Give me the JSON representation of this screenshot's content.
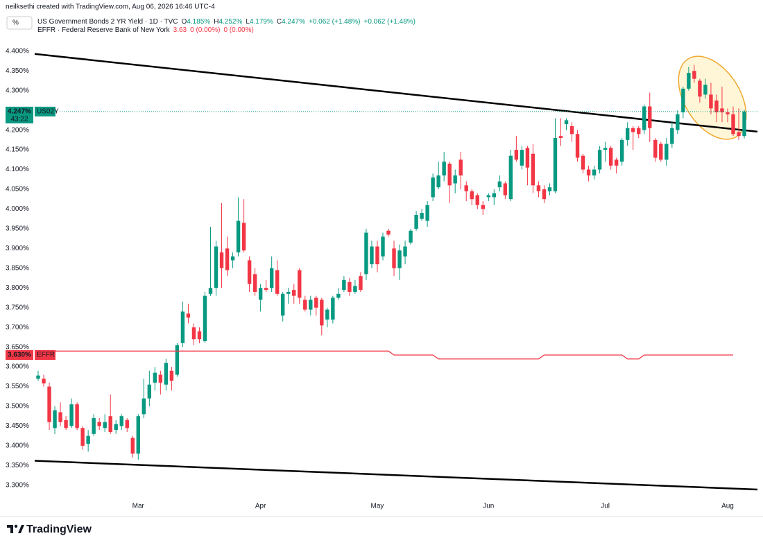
{
  "header": {
    "credit": "neilksethi created with TradingView.com, Aug 06, 2026 16:46 UTC-4",
    "icon": "%",
    "lines": [
      {
        "title": "US Government Bonds 2 YR Yield · 1D · TVC",
        "color": "#089981",
        "fields": [
          {
            "key": "O",
            "value": "4.185%"
          },
          {
            "key": "H",
            "value": "4.252%"
          },
          {
            "key": "L",
            "value": "4.179%"
          },
          {
            "key": "C",
            "value": "4.247%"
          },
          {
            "value": "+0.062 (+1.48%)"
          },
          {
            "value": "+0.062 (+1.48%)"
          }
        ]
      },
      {
        "title": "EFFR · Federal Reserve Bank of New York",
        "color": "#f23645",
        "fields": [
          {
            "value": "3.63"
          },
          {
            "value": "0 (0.00%)"
          },
          {
            "value": "0 (0.00%)"
          }
        ]
      }
    ]
  },
  "footer": {
    "brand": "TradingView"
  },
  "chart_data": {
    "type": "candlestick",
    "categories": [
      null,
      null,
      null,
      null,
      null,
      null,
      null,
      null,
      null,
      null,
      null,
      null,
      null,
      null,
      null,
      null,
      null,
      null,
      "Mar",
      null,
      null,
      null,
      null,
      null,
      null,
      null,
      null,
      null,
      null,
      null,
      null,
      null,
      null,
      null,
      null,
      null,
      null,
      null,
      null,
      null,
      "Apr",
      null,
      null,
      null,
      null,
      null,
      null,
      null,
      null,
      null,
      null,
      null,
      null,
      null,
      null,
      null,
      null,
      null,
      null,
      null,
      null,
      "May",
      null,
      null,
      null,
      null,
      null,
      null,
      null,
      null,
      null,
      null,
      null,
      null,
      null,
      null,
      null,
      null,
      null,
      null,
      null,
      "Jun",
      null,
      null,
      null,
      null,
      null,
      null,
      null,
      null,
      null,
      null,
      null,
      null,
      null,
      null,
      null,
      null,
      null,
      null,
      null,
      null,
      "Jul",
      null,
      null,
      null,
      null,
      null,
      null,
      null,
      null,
      null,
      null,
      null,
      null,
      null,
      null,
      null,
      null,
      null,
      null,
      null,
      null,
      null,
      "Aug",
      null,
      null,
      null
    ],
    "series": [
      {
        "name": "US02Y",
        "up_color": "#089981",
        "down_color": "#f23645",
        "open": [
          3.57,
          3.57,
          3.55,
          3.445,
          3.485,
          3.465,
          3.45,
          3.505,
          3.445,
          3.405,
          3.43,
          3.46,
          3.445,
          3.475,
          3.44,
          3.45,
          3.465,
          3.42,
          3.38,
          3.48,
          3.52,
          3.56,
          3.58,
          3.555,
          3.59,
          3.58,
          3.66,
          3.735,
          3.7,
          3.69,
          3.665,
          3.785,
          3.8,
          3.89,
          3.9,
          3.87,
          3.89,
          3.965,
          3.87,
          3.835,
          3.77,
          3.8,
          3.8,
          3.845,
          3.73,
          3.785,
          3.795,
          3.845,
          3.77,
          3.745,
          3.775,
          3.77,
          3.72,
          3.72,
          3.775,
          3.795,
          3.815,
          3.79,
          3.83,
          3.835,
          3.86,
          3.905,
          3.88,
          3.945,
          3.9,
          3.85,
          3.88,
          3.915,
          3.95,
          3.975,
          3.97,
          4.03,
          4.055,
          4.085,
          4.115,
          4.065,
          4.125,
          4.06,
          4.045,
          4.035,
          4.01,
          4.03,
          4.03,
          4.055,
          4.065,
          4.025,
          4.15,
          4.11,
          4.155,
          4.14,
          4.06,
          4.05,
          4.045,
          4.045,
          4.185,
          4.215,
          4.21,
          4.19,
          4.135,
          4.1,
          4.085,
          4.1,
          4.15,
          4.155,
          4.125,
          4.12,
          4.175,
          4.205,
          4.205,
          4.2,
          4.26,
          4.175,
          4.165,
          4.125,
          4.165,
          4.2,
          4.245,
          4.305,
          4.35,
          4.325,
          4.29,
          4.29,
          4.275,
          4.255,
          4.245,
          4.24,
          4.195,
          4.185
        ],
        "high": [
          3.59,
          3.58,
          3.56,
          3.5,
          3.51,
          3.475,
          3.52,
          3.51,
          3.45,
          3.44,
          3.48,
          3.47,
          3.48,
          3.53,
          3.465,
          3.48,
          3.47,
          3.425,
          3.48,
          3.57,
          3.59,
          3.6,
          3.59,
          3.62,
          3.6,
          3.66,
          3.765,
          3.76,
          3.71,
          3.7,
          3.79,
          3.955,
          3.92,
          4.015,
          3.93,
          3.89,
          4.03,
          4.025,
          3.88,
          3.85,
          3.81,
          3.82,
          3.88,
          3.87,
          3.79,
          3.8,
          3.81,
          3.85,
          3.78,
          3.78,
          3.78,
          3.775,
          3.75,
          3.78,
          3.8,
          3.83,
          3.825,
          3.82,
          3.84,
          3.95,
          3.92,
          3.92,
          3.94,
          3.95,
          3.92,
          3.91,
          3.92,
          3.95,
          3.995,
          4.0,
          4.02,
          4.09,
          4.12,
          4.145,
          4.12,
          4.1,
          4.145,
          4.07,
          4.05,
          4.04,
          4.02,
          4.04,
          4.05,
          4.085,
          4.07,
          4.15,
          4.185,
          4.16,
          4.16,
          4.165,
          4.07,
          4.06,
          4.065,
          4.23,
          4.23,
          4.23,
          4.22,
          4.2,
          4.14,
          4.11,
          4.11,
          4.16,
          4.17,
          4.16,
          4.13,
          4.18,
          4.22,
          4.21,
          4.21,
          4.265,
          4.295,
          4.18,
          4.17,
          4.18,
          4.22,
          4.25,
          4.31,
          4.36,
          4.365,
          4.33,
          4.33,
          4.32,
          4.29,
          4.31,
          4.255,
          4.26,
          4.255,
          4.252
        ],
        "low": [
          3.565,
          3.55,
          3.44,
          3.43,
          3.45,
          3.44,
          3.445,
          3.44,
          3.39,
          3.385,
          3.425,
          3.44,
          3.435,
          3.43,
          3.43,
          3.44,
          3.435,
          3.37,
          3.365,
          3.47,
          3.5,
          3.54,
          3.53,
          3.54,
          3.54,
          3.575,
          3.65,
          3.71,
          3.655,
          3.66,
          3.66,
          3.78,
          3.78,
          3.8,
          3.83,
          3.85,
          3.88,
          3.89,
          3.79,
          3.78,
          3.74,
          3.79,
          3.79,
          3.78,
          3.715,
          3.76,
          3.76,
          3.76,
          3.74,
          3.73,
          3.73,
          3.68,
          3.7,
          3.71,
          3.77,
          3.79,
          3.78,
          3.785,
          3.79,
          3.82,
          3.85,
          3.84,
          3.87,
          3.93,
          3.83,
          3.82,
          3.86,
          3.91,
          3.945,
          3.97,
          3.955,
          4.02,
          4.05,
          4.07,
          4.015,
          4.04,
          4.05,
          4.02,
          4.01,
          4.0,
          3.985,
          4.02,
          4.01,
          4.045,
          4.025,
          4.02,
          4.12,
          4.1,
          4.06,
          4.04,
          4.03,
          4.015,
          4.035,
          4.04,
          4.16,
          4.2,
          4.17,
          4.12,
          4.09,
          4.07,
          4.075,
          4.09,
          4.12,
          4.1,
          4.09,
          4.11,
          4.16,
          4.15,
          4.18,
          4.19,
          4.17,
          4.12,
          4.12,
          4.11,
          4.155,
          4.19,
          4.23,
          4.3,
          4.32,
          4.27,
          4.28,
          4.24,
          4.22,
          4.22,
          4.22,
          4.185,
          4.175,
          4.179
        ],
        "close": [
          3.578,
          3.558,
          3.46,
          3.49,
          3.46,
          3.445,
          3.505,
          3.445,
          3.4,
          3.425,
          3.47,
          3.45,
          3.46,
          3.435,
          3.455,
          3.475,
          3.445,
          3.38,
          3.475,
          3.52,
          3.555,
          3.585,
          3.56,
          3.61,
          3.565,
          3.655,
          3.74,
          3.725,
          3.67,
          3.67,
          3.78,
          3.8,
          3.905,
          3.85,
          3.845,
          3.88,
          3.97,
          3.895,
          3.81,
          3.79,
          3.8,
          3.795,
          3.85,
          3.785,
          3.785,
          3.79,
          3.78,
          3.775,
          3.745,
          3.77,
          3.75,
          3.705,
          3.745,
          3.775,
          3.785,
          3.82,
          3.79,
          3.805,
          3.795,
          3.94,
          3.905,
          3.86,
          3.93,
          3.935,
          3.85,
          3.895,
          3.905,
          3.945,
          3.985,
          3.99,
          4.01,
          4.08,
          4.085,
          4.12,
          4.06,
          4.085,
          4.085,
          4.045,
          4.025,
          4.01,
          4.0,
          4.035,
          4.04,
          4.07,
          4.035,
          4.135,
          4.125,
          4.15,
          4.105,
          4.06,
          4.045,
          4.025,
          4.055,
          4.18,
          4.18,
          4.225,
          4.19,
          4.13,
          4.1,
          4.085,
          4.1,
          4.15,
          4.155,
          4.11,
          4.11,
          4.175,
          4.205,
          4.195,
          4.19,
          4.26,
          4.205,
          4.13,
          4.125,
          4.165,
          4.205,
          4.24,
          4.305,
          4.345,
          4.33,
          4.285,
          4.315,
          4.255,
          4.245,
          4.245,
          4.24,
          4.19,
          4.185,
          4.247
        ]
      },
      {
        "name": "EFFR",
        "type": "line",
        "color": "#f23645",
        "values": [
          3.64,
          3.64,
          3.64,
          3.64,
          3.64,
          3.64,
          3.64,
          3.64,
          3.64,
          3.64,
          3.64,
          3.64,
          3.64,
          3.64,
          3.64,
          3.64,
          3.64,
          3.64,
          3.64,
          3.64,
          3.64,
          3.64,
          3.64,
          3.64,
          3.64,
          3.64,
          3.64,
          3.64,
          3.64,
          3.64,
          3.64,
          3.64,
          3.64,
          3.64,
          3.64,
          3.64,
          3.64,
          3.64,
          3.64,
          3.64,
          3.64,
          3.64,
          3.64,
          3.64,
          3.64,
          3.64,
          3.64,
          3.64,
          3.64,
          3.64,
          3.64,
          3.64,
          3.64,
          3.64,
          3.64,
          3.64,
          3.64,
          3.64,
          3.64,
          3.64,
          3.64,
          3.64,
          3.64,
          3.64,
          3.63,
          3.63,
          3.63,
          3.63,
          3.63,
          3.63,
          3.63,
          3.63,
          3.62,
          3.62,
          3.62,
          3.62,
          3.62,
          3.62,
          3.62,
          3.62,
          3.62,
          3.62,
          3.62,
          3.62,
          3.62,
          3.62,
          3.62,
          3.62,
          3.62,
          3.62,
          3.62,
          3.63,
          3.63,
          3.63,
          3.63,
          3.63,
          3.63,
          3.63,
          3.63,
          3.63,
          3.63,
          3.63,
          3.63,
          3.63,
          3.63,
          3.63,
          3.62,
          3.62,
          3.62,
          3.63,
          3.63,
          3.63,
          3.63,
          3.63,
          3.63,
          3.63,
          3.63,
          3.63,
          3.63,
          3.63,
          3.63,
          3.63,
          3.63,
          3.63,
          3.63,
          3.63,
          null,
          null
        ]
      }
    ],
    "price_tags": [
      {
        "series": 0,
        "value": 4.247,
        "label": "4.247%",
        "countdown": "43:22",
        "color": "#089981"
      },
      {
        "series": 1,
        "value": 3.63,
        "label": "3.630%",
        "color": "#f23645"
      }
    ],
    "trendlines": [
      {
        "values": [
          4.393,
          4.196
        ],
        "color": "#000000"
      },
      {
        "values": [
          3.362,
          3.289
        ],
        "color": "#000000"
      }
    ],
    "ylim": [
      3.268,
      4.477
    ],
    "yticks": [
      {
        "value": 3.3,
        "label": "3.300%"
      },
      {
        "value": 3.35,
        "label": "3.350%"
      },
      {
        "value": 3.4,
        "label": "3.400%"
      },
      {
        "value": 3.45,
        "label": "3.450%"
      },
      {
        "value": 3.5,
        "label": "3.500%"
      },
      {
        "value": 3.55,
        "label": "3.550%"
      },
      {
        "value": 3.6,
        "label": "3.600%"
      },
      {
        "value": 3.65,
        "label": "3.650%"
      },
      {
        "value": 3.7,
        "label": "3.700%"
      },
      {
        "value": 3.75,
        "label": "3.750%"
      },
      {
        "value": 3.8,
        "label": "3.800%"
      },
      {
        "value": 3.85,
        "label": "3.850%"
      },
      {
        "value": 3.9,
        "label": "3.900%"
      },
      {
        "value": 3.95,
        "label": "3.950%"
      },
      {
        "value": 4.0,
        "label": "4.000%"
      },
      {
        "value": 4.05,
        "label": "4.050%"
      },
      {
        "value": 4.1,
        "label": "4.100%"
      },
      {
        "value": 4.15,
        "label": "4.150%"
      },
      {
        "value": 4.2,
        "label": "4.200%"
      },
      {
        "value": 4.3,
        "label": "4.300%"
      },
      {
        "value": 4.35,
        "label": "4.350%"
      },
      {
        "value": 4.4,
        "label": "4.400%"
      }
    ],
    "grid": false
  }
}
